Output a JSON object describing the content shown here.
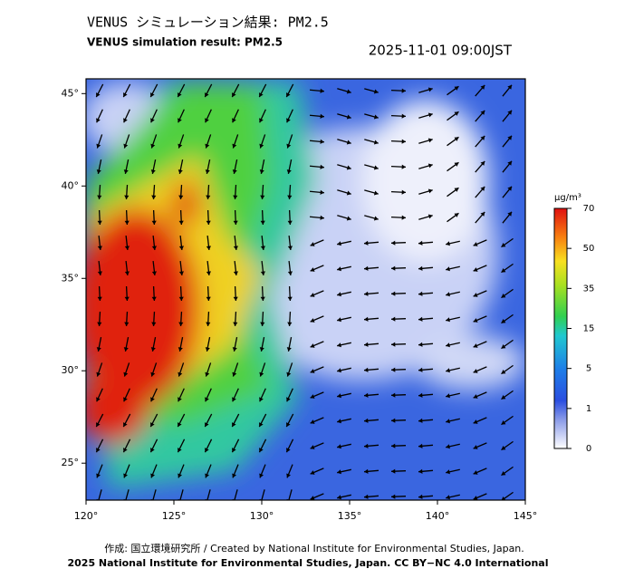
{
  "header": {
    "title": "VENUS シミュレーション結果: PM2.5",
    "subtitle": "VENUS simulation result: PM2.5",
    "datetime": "2025-11-01 09:00JST"
  },
  "map": {
    "xlim": [
      120,
      145
    ],
    "ylim": [
      23,
      45.8
    ],
    "xticks": [
      {
        "value": 120,
        "label": "120°"
      },
      {
        "value": 125,
        "label": "125°"
      },
      {
        "value": 130,
        "label": "130°"
      },
      {
        "value": 135,
        "label": "135°"
      },
      {
        "value": 140,
        "label": "140°"
      },
      {
        "value": 145,
        "label": "145°"
      }
    ],
    "yticks": [
      {
        "value": 45,
        "label": "45°"
      },
      {
        "value": 40,
        "label": "40°"
      },
      {
        "value": 35,
        "label": "35°"
      },
      {
        "value": 30,
        "label": "30°"
      },
      {
        "value": 25,
        "label": "25°"
      }
    ]
  },
  "colorbar": {
    "unit": "μg/m³",
    "ticks": [
      0,
      1,
      5,
      15,
      35,
      50,
      70
    ]
  },
  "footer": {
    "line1": "作成: 国立環境研究所 / Created by National Institute for Environmental Studies, Japan.",
    "line2": "2025 National Institute for Environmental Studies, Japan. CC BY−NC 4.0 International"
  }
}
